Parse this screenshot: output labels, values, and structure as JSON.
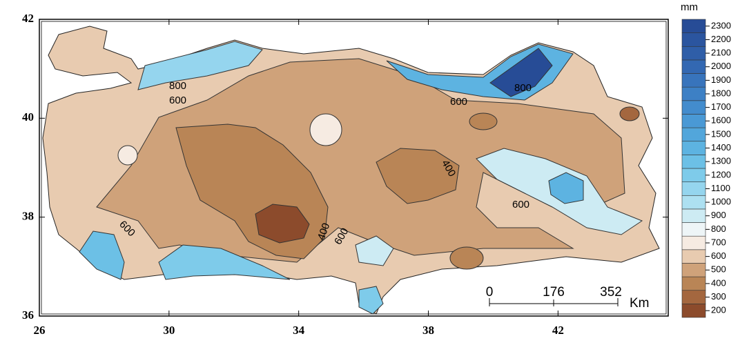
{
  "map": {
    "xlim": [
      26,
      45.4
    ],
    "ylim": [
      36,
      42
    ],
    "xticks": [
      26,
      30,
      34,
      38,
      42
    ],
    "yticks": [
      36,
      38,
      40,
      42
    ],
    "legend": {
      "unit": "mm",
      "levels": [
        200,
        300,
        400,
        500,
        600,
        700,
        800,
        900,
        1000,
        1100,
        1200,
        1300,
        1400,
        1500,
        1600,
        1700,
        1800,
        1900,
        2000,
        2100,
        2200,
        2300
      ],
      "colors": [
        "#8c4b2c",
        "#a4673f",
        "#b98556",
        "#cfa27a",
        "#e8cbb0",
        "#f6ebe2",
        "#eef5f7",
        "#cdebf3",
        "#ade0f1",
        "#95d5ee",
        "#7ecbea",
        "#6cc0e6",
        "#5db3e1",
        "#52a6db",
        "#4a99d5",
        "#438ccd",
        "#3d80c5",
        "#3874bc",
        "#3368b2",
        "#2f5ea8",
        "#2b559f",
        "#274c96"
      ]
    },
    "contour_labels": [
      "800",
      "600",
      "800",
      "600",
      "400",
      "400",
      "600",
      "600",
      "600"
    ],
    "scale_bar": {
      "ticks": [
        "0",
        "176",
        "352"
      ],
      "unit": "Km"
    }
  }
}
